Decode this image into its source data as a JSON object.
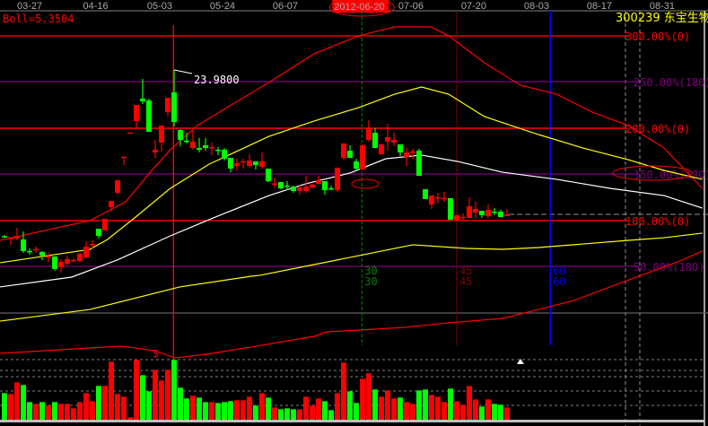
{
  "header": {
    "indicator": "Boll=5.3504",
    "symbol": "300239 东宝生物",
    "selected_date": "2012-06-20"
  },
  "colors": {
    "up": "#ff0000",
    "down": "#00ff00",
    "background": "#000000",
    "upper_band": "#ff0000",
    "mid_band": "#ffff00",
    "center_line": "#ffffff",
    "level_red": "#ff0000",
    "level_purple": "#800080"
  },
  "chart_data": {
    "type": "candlestick",
    "x_ticks": [
      "03-27",
      "04-16",
      "05-03",
      "05-24",
      "06-07",
      "2012-06-20",
      "07-06",
      "07-20",
      "08-03",
      "08-17",
      "08-31"
    ],
    "x_tick_index": [
      4,
      14.5,
      24.7,
      34.7,
      44.7,
      56.9,
      64.7,
      74.7,
      84.7,
      94.7,
      104.7
    ],
    "x_range_index": [
      0,
      111
    ],
    "high_label": "23.9800",
    "high_label_index": 27,
    "high_value": 23.98,
    "candles_ohlc": [
      [
        7.58,
        7.7,
        7.4,
        7.5
      ],
      [
        7.43,
        7.45,
        6.73,
        7.45
      ],
      [
        7.35,
        8.41,
        7.17,
        7.61
      ],
      [
        7.26,
        8.05,
        5.93,
        6.11
      ],
      [
        6.12,
        6.37,
        5.75,
        6.1
      ],
      [
        6.28,
        6.55,
        5.93,
        6.3
      ],
      [
        6.02,
        6.11,
        5.22,
        5.66
      ],
      [
        5.56,
        5.93,
        5.04,
        5.6
      ],
      [
        5.58,
        5.58,
        4.16,
        4.34
      ],
      [
        4.51,
        5.31,
        3.98,
        5.04
      ],
      [
        4.87,
        5.58,
        4.69,
        5.31
      ],
      [
        5.2,
        5.4,
        5.04,
        5.22
      ],
      [
        5.13,
        5.93,
        5.04,
        5.84
      ],
      [
        5.49,
        7.08,
        5.4,
        6.55
      ],
      [
        6.8,
        7.17,
        6.37,
        6.82
      ],
      [
        8.32,
        8.32,
        7.35,
        7.61
      ],
      [
        8.14,
        9.29,
        8.14,
        9.29
      ],
      [
        10.44,
        11.06,
        10.0,
        11.06
      ],
      [
        11.86,
        13.1,
        11.68,
        13.1
      ],
      [
        15.4,
        15.42,
        14.6,
        15.42
      ],
      [
        17.79,
        17.81,
        17.79,
        17.81
      ],
      [
        18.94,
        20.53,
        18.23,
        20.53
      ],
      [
        21.15,
        23.1,
        20.62,
        20.89
      ],
      [
        20.97,
        21.15,
        17.88,
        17.88
      ],
      [
        15.84,
        17.08,
        15.31,
        16.11
      ],
      [
        16.82,
        18.5,
        15.93,
        18.5
      ],
      [
        19.82,
        21.24,
        19.38,
        21.24
      ],
      [
        21.77,
        23.98,
        18.41,
        18.85
      ],
      [
        18.05,
        18.14,
        16.46,
        17.08
      ],
      [
        17.0,
        17.79,
        16.73,
        16.98
      ],
      [
        16.28,
        18.05,
        16.11,
        16.9
      ],
      [
        16.28,
        17.26,
        15.84,
        16.11
      ],
      [
        16.55,
        17.26,
        16.02,
        16.28
      ],
      [
        16.36,
        16.82,
        15.58,
        16.38
      ],
      [
        16.11,
        16.38,
        15.58,
        16.09
      ],
      [
        16.11,
        16.28,
        15.05,
        15.22
      ],
      [
        15.31,
        15.31,
        13.89,
        14.25
      ],
      [
        14.51,
        15.22,
        14.07,
        14.78
      ],
      [
        14.95,
        15.22,
        14.25,
        14.97
      ],
      [
        14.51,
        15.66,
        14.34,
        15.05
      ],
      [
        14.96,
        14.96,
        14.16,
        14.6
      ],
      [
        14.43,
        15.84,
        14.25,
        14.96
      ],
      [
        14.25,
        14.25,
        12.92,
        13.01
      ],
      [
        12.76,
        13.37,
        12.32,
        12.78
      ],
      [
        12.92,
        12.92,
        12.21,
        12.3
      ],
      [
        12.58,
        13.01,
        12.12,
        12.56
      ],
      [
        12.48,
        12.56,
        11.86,
        12.04
      ],
      [
        12.04,
        12.56,
        11.68,
        12.39
      ],
      [
        12.04,
        13.54,
        11.86,
        12.48
      ],
      [
        12.39,
        12.74,
        12.3,
        12.66
      ],
      [
        12.74,
        13.54,
        12.74,
        13.1
      ],
      [
        13.01,
        13.01,
        11.68,
        12.12
      ],
      [
        12.31,
        12.56,
        12.12,
        12.29
      ],
      [
        12.12,
        14.34,
        11.95,
        14.34
      ],
      [
        15.31,
        16.73,
        15.13,
        16.73
      ],
      [
        16.02,
        16.55,
        15.31,
        15.31
      ],
      [
        14.96,
        15.22,
        14.07,
        14.25
      ],
      [
        14.16,
        16.64,
        14.16,
        16.55
      ],
      [
        17.08,
        19.03,
        16.9,
        18.23
      ],
      [
        17.79,
        18.23,
        16.28,
        16.28
      ],
      [
        15.66,
        16.73,
        15.66,
        16.64
      ],
      [
        16.9,
        18.67,
        16.02,
        17.35
      ],
      [
        16.82,
        17.79,
        16.46,
        17.08
      ],
      [
        16.64,
        16.64,
        15.49,
        15.84
      ],
      [
        15.4,
        16.28,
        14.51,
        15.84
      ],
      [
        15.92,
        16.2,
        15.22,
        15.94
      ],
      [
        16.02,
        16.2,
        13.54,
        13.54
      ],
      [
        12.21,
        12.21,
        11.24,
        11.24
      ],
      [
        10.71,
        11.59,
        10.27,
        11.59
      ],
      [
        11.41,
        11.86,
        10.8,
        11.43
      ],
      [
        11.32,
        11.95,
        10.97,
        11.34
      ],
      [
        11.33,
        11.33,
        9.2,
        9.2
      ],
      [
        9.2,
        9.65,
        9.03,
        9.65
      ],
      [
        9.46,
        9.82,
        9.2,
        9.48
      ],
      [
        9.38,
        11.42,
        9.38,
        10.53
      ],
      [
        9.91,
        10.97,
        9.38,
        10.27
      ],
      [
        10.09,
        10.09,
        9.38,
        9.65
      ],
      [
        9.56,
        10.71,
        9.38,
        10.18
      ],
      [
        10.01,
        10.35,
        9.65,
        9.99
      ],
      [
        10.0,
        10.18,
        9.47,
        9.47
      ],
      [
        9.56,
        10.27,
        9.56,
        9.74
      ]
    ],
    "volume": [
      [
        89,
        "down"
      ],
      [
        86,
        "up"
      ],
      [
        125,
        "up"
      ],
      [
        116,
        "down"
      ],
      [
        59,
        "down"
      ],
      [
        53,
        "up"
      ],
      [
        59,
        "down"
      ],
      [
        47,
        "up"
      ],
      [
        59,
        "down"
      ],
      [
        53,
        "up"
      ],
      [
        53,
        "up"
      ],
      [
        38,
        "up"
      ],
      [
        59,
        "up"
      ],
      [
        89,
        "up"
      ],
      [
        62,
        "up"
      ],
      [
        113,
        "down"
      ],
      [
        113,
        "up"
      ],
      [
        194,
        "up"
      ],
      [
        86,
        "up"
      ],
      [
        77,
        "up"
      ],
      [
        8,
        "up"
      ],
      [
        200,
        "up"
      ],
      [
        149,
        "down"
      ],
      [
        95,
        "down"
      ],
      [
        167,
        "up"
      ],
      [
        131,
        "up"
      ],
      [
        167,
        "up"
      ],
      [
        200,
        "down"
      ],
      [
        107,
        "down"
      ],
      [
        71,
        "down"
      ],
      [
        80,
        "up"
      ],
      [
        74,
        "down"
      ],
      [
        59,
        "down"
      ],
      [
        59,
        "up"
      ],
      [
        56,
        "down"
      ],
      [
        59,
        "down"
      ],
      [
        62,
        "down"
      ],
      [
        65,
        "up"
      ],
      [
        65,
        "up"
      ],
      [
        77,
        "up"
      ],
      [
        47,
        "down"
      ],
      [
        89,
        "up"
      ],
      [
        74,
        "down"
      ],
      [
        41,
        "up"
      ],
      [
        35,
        "down"
      ],
      [
        38,
        "down"
      ],
      [
        35,
        "down"
      ],
      [
        35,
        "up"
      ],
      [
        77,
        "up"
      ],
      [
        47,
        "up"
      ],
      [
        71,
        "up"
      ],
      [
        62,
        "down"
      ],
      [
        32,
        "down"
      ],
      [
        89,
        "up"
      ],
      [
        191,
        "up"
      ],
      [
        95,
        "down"
      ],
      [
        56,
        "down"
      ],
      [
        137,
        "up"
      ],
      [
        155,
        "up"
      ],
      [
        101,
        "down"
      ],
      [
        77,
        "up"
      ],
      [
        98,
        "up"
      ],
      [
        71,
        "up"
      ],
      [
        74,
        "down"
      ],
      [
        59,
        "up"
      ],
      [
        53,
        "up"
      ],
      [
        98,
        "down"
      ],
      [
        101,
        "down"
      ],
      [
        83,
        "up"
      ],
      [
        77,
        "up"
      ],
      [
        59,
        "up"
      ],
      [
        104,
        "down"
      ],
      [
        62,
        "up"
      ],
      [
        50,
        "up"
      ],
      [
        113,
        "up"
      ],
      [
        68,
        "up"
      ],
      [
        44,
        "down"
      ],
      [
        68,
        "up"
      ],
      [
        53,
        "down"
      ],
      [
        50,
        "down"
      ],
      [
        41,
        "up"
      ]
    ],
    "bands": {
      "upper_red": [
        [
          -0.7,
          7.17
        ],
        [
          13.6,
          9.12
        ],
        [
          19.3,
          10.97
        ],
        [
          23.1,
          13.81
        ],
        [
          26.4,
          16.11
        ],
        [
          30.7,
          18.5
        ],
        [
          35.4,
          20.27
        ],
        [
          42.1,
          22.75
        ],
        [
          49.3,
          25.58
        ],
        [
          56.4,
          27.35
        ],
        [
          62.1,
          28.23
        ],
        [
          67.9,
          28.23
        ],
        [
          70.7,
          27.35
        ],
        [
          76.4,
          24.69
        ],
        [
          82.1,
          22.48
        ],
        [
          87.9,
          21.59
        ],
        [
          93.6,
          19.82
        ],
        [
          99.3,
          18.5
        ],
        [
          105,
          16.28
        ],
        [
          111.1,
          12.3
        ]
      ],
      "upper_yellow": [
        [
          -0.7,
          4.96
        ],
        [
          13.6,
          6.28
        ],
        [
          16.4,
          7.26
        ],
        [
          20.7,
          9.38
        ],
        [
          26.4,
          12.3
        ],
        [
          32.6,
          14.69
        ],
        [
          42.1,
          17.43
        ],
        [
          49.3,
          18.94
        ],
        [
          56.4,
          20.27
        ],
        [
          62.1,
          21.59
        ],
        [
          66.4,
          22.3
        ],
        [
          70.7,
          21.59
        ],
        [
          76.4,
          19.38
        ],
        [
          85,
          17.61
        ],
        [
          92.1,
          16.28
        ],
        [
          99.3,
          15.13
        ],
        [
          105,
          14.07
        ],
        [
          111.1,
          13.19
        ]
      ],
      "center_white": [
        [
          -0.7,
          2.57
        ],
        [
          10.7,
          3.54
        ],
        [
          17.9,
          5.22
        ],
        [
          26.4,
          7.61
        ],
        [
          33.6,
          9.47
        ],
        [
          42.1,
          11.59
        ],
        [
          47.9,
          12.74
        ],
        [
          55,
          13.81
        ],
        [
          60.7,
          15.22
        ],
        [
          66.4,
          15.58
        ],
        [
          72.1,
          14.96
        ],
        [
          79.3,
          13.89
        ],
        [
          87.9,
          13.19
        ],
        [
          96.4,
          12.3
        ],
        [
          105,
          11.59
        ],
        [
          111.1,
          10.35
        ]
      ],
      "lower_yellow": [
        [
          -0.7,
          -0.8
        ],
        [
          13.6,
          0.35
        ],
        [
          27.9,
          2.57
        ],
        [
          39.3,
          3.63
        ],
        [
          40.7,
          3.72
        ],
        [
          49.3,
          4.78
        ],
        [
          56.4,
          5.66
        ],
        [
          65,
          6.73
        ],
        [
          73.6,
          6.37
        ],
        [
          79.3,
          6.28
        ],
        [
          85,
          6.46
        ],
        [
          92.1,
          6.81
        ],
        [
          99.3,
          7.17
        ],
        [
          105,
          7.43
        ],
        [
          111.1,
          7.88
        ]
      ],
      "lower_red": [
        [
          -0.7,
          -3.98
        ],
        [
          18.6,
          -3.27
        ],
        [
          23.9,
          -3.72
        ],
        [
          27.1,
          -4.43
        ],
        [
          32.1,
          -4.07
        ],
        [
          39.3,
          -3.36
        ],
        [
          49.3,
          -2.3
        ],
        [
          51.4,
          -1.86
        ],
        [
          56.4,
          -1.68
        ],
        [
          63.6,
          -1.42
        ],
        [
          70.7,
          -0.97
        ],
        [
          79.3,
          -0.53
        ],
        [
          85,
          0.35
        ],
        [
          90.7,
          1.24
        ],
        [
          96.4,
          2.57
        ],
        [
          102.1,
          3.89
        ],
        [
          107.9,
          5.22
        ],
        [
          111.1,
          6.11
        ]
      ]
    },
    "levels": [
      {
        "label": "300.00%(0)",
        "value": 27.35,
        "color": "#ff0000"
      },
      {
        "label": "250.00%(180)",
        "value": 22.83,
        "color": "#800080"
      },
      {
        "label": "200.00%(0)",
        "value": 18.23,
        "color": "#ff0000"
      },
      {
        "label": "150.00%(180)",
        "value": 13.72,
        "color": "#800080"
      },
      {
        "label": "100.00%(0)",
        "value": 9.12,
        "color": "#ff0000"
      },
      {
        "label": "50.00%(180)",
        "value": 4.6,
        "color": "#800080"
      },
      {
        "label": "",
        "value": 0,
        "color": "#606060"
      }
    ],
    "cycle_lines": [
      {
        "index": 56.9,
        "labels": [
          "30",
          "30"
        ],
        "color": "#008000"
      },
      {
        "index": 72.0,
        "labels": [
          "45",
          "45"
        ],
        "color": "#800000"
      },
      {
        "index": 86.9,
        "labels": [
          "60",
          "60"
        ],
        "color": "#0000ff"
      }
    ],
    "cursor_index": 26.9,
    "marker_dollar": "$"
  }
}
